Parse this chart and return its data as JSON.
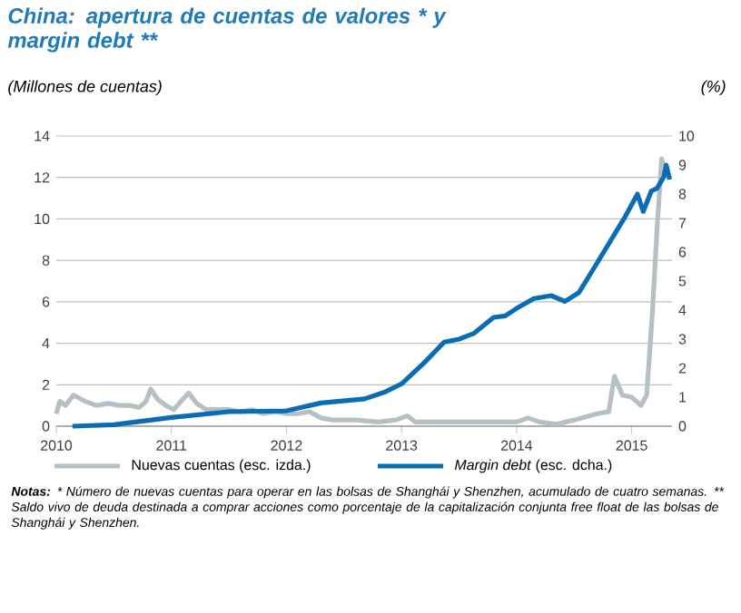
{
  "chart_data": {
    "type": "line",
    "title": "China: apertura de cuentas de valores * y margin debt **",
    "ylabel": "(Millones de cuentas)",
    "y2label": "(%)",
    "xlim": [
      2010,
      2015.35
    ],
    "xticks": [
      2010,
      2011,
      2012,
      2013,
      2014,
      2015
    ],
    "ylim": [
      0,
      14
    ],
    "yticks": [
      0,
      2,
      4,
      6,
      8,
      10,
      12,
      14
    ],
    "y2lim": [
      0,
      10
    ],
    "y2ticks": [
      0,
      1,
      2,
      3,
      4,
      5,
      6,
      7,
      8,
      9,
      10
    ],
    "grid": "y",
    "legend": "bottom",
    "line_style": "solid",
    "marker": "none",
    "series": [
      {
        "name": "Nuevas cuentas (esc. izda.)",
        "color": "#b4c0c4",
        "x": [
          2010.0,
          2010.03,
          2010.08,
          2010.15,
          2010.25,
          2010.35,
          2010.45,
          2010.55,
          2010.65,
          2010.72,
          2010.78,
          2010.82,
          2010.88,
          2010.95,
          2011.02,
          2011.1,
          2011.15,
          2011.22,
          2011.3,
          2011.4,
          2011.5,
          2011.6,
          2011.7,
          2011.8,
          2011.9,
          2012.0,
          2012.1,
          2012.2,
          2012.3,
          2012.4,
          2012.6,
          2012.8,
          2012.95,
          2013.05,
          2013.12,
          2013.3,
          2013.6,
          2013.9,
          2014.0,
          2014.1,
          2014.2,
          2014.35,
          2014.5,
          2014.7,
          2014.8,
          2014.85,
          2014.92,
          2015.0,
          2015.08,
          2015.13,
          2015.18,
          2015.22,
          2015.26,
          2015.3
        ],
        "values": [
          0.6,
          1.2,
          1.0,
          1.5,
          1.2,
          1.0,
          1.1,
          1.0,
          1.0,
          0.9,
          1.2,
          1.8,
          1.3,
          1.0,
          0.8,
          1.3,
          1.6,
          1.1,
          0.8,
          0.8,
          0.8,
          0.7,
          0.8,
          0.6,
          0.7,
          0.6,
          0.6,
          0.7,
          0.4,
          0.3,
          0.3,
          0.2,
          0.3,
          0.5,
          0.2,
          0.2,
          0.2,
          0.2,
          0.2,
          0.4,
          0.2,
          0.1,
          0.3,
          0.6,
          0.7,
          2.4,
          1.5,
          1.4,
          1.0,
          1.5,
          5.5,
          9.5,
          12.9,
          12.2
        ]
      },
      {
        "name": "*Margin debt* (esc. dcha.)",
        "color": "#0a6cb4",
        "axis": "y2",
        "x": [
          2010.14,
          2010.5,
          2011.0,
          2011.5,
          2012.0,
          2012.3,
          2012.68,
          2012.85,
          2013.0,
          2013.2,
          2013.37,
          2013.5,
          2013.63,
          2013.8,
          2013.9,
          2014.0,
          2014.15,
          2014.3,
          2014.42,
          2014.54,
          2014.68,
          2014.81,
          2014.94,
          2015.05,
          2015.1,
          2015.17,
          2015.22,
          2015.28,
          2015.3,
          2015.33
        ],
        "values": [
          0.0,
          0.05,
          0.3,
          0.5,
          0.53,
          0.8,
          0.94,
          1.17,
          1.46,
          2.2,
          2.9,
          3.0,
          3.2,
          3.75,
          3.8,
          4.06,
          4.4,
          4.5,
          4.3,
          4.6,
          5.5,
          6.35,
          7.2,
          8.0,
          7.4,
          8.1,
          8.2,
          8.6,
          9.0,
          8.5
        ]
      }
    ],
    "annotations": [
      "**Notas:** * Número de nuevas cuentas para operar en las bolsas de Shanghái y Shenzhen, acumulado de cuatro semanas.  ** Saldo vivo de deuda destinada a comprar acciones como porcentaje de la capitalización conjunta free float de las bolsas de Shanghái y Shenzhen."
    ]
  }
}
